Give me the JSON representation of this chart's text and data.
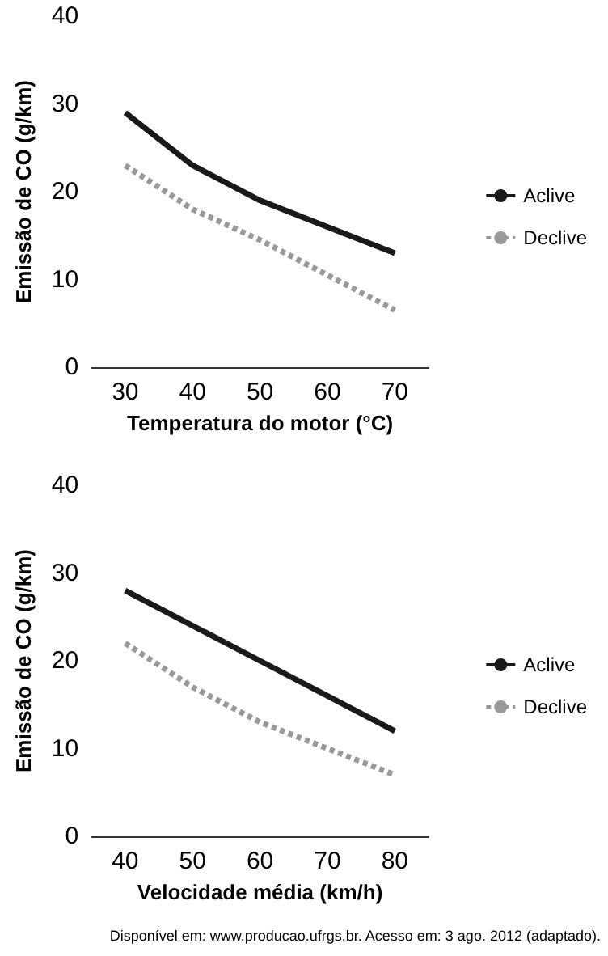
{
  "chart_data": [
    {
      "type": "line",
      "xlabel": "Temperatura do motor (°C)",
      "ylabel": "Emissão de CO (g/km)",
      "categories": [
        "30",
        "40",
        "50",
        "60",
        "70"
      ],
      "series": [
        {
          "name": "Aclive",
          "color": "#1a1a1a",
          "line_style": "solid",
          "values": [
            29,
            23,
            19,
            16,
            13
          ]
        },
        {
          "name": "Declive",
          "color": "#999999",
          "line_style": "dashed",
          "values": [
            23,
            18,
            14.5,
            10.5,
            6.5
          ]
        }
      ],
      "ylim": [
        0,
        40
      ],
      "yticks": [
        0,
        10,
        20,
        30,
        40
      ],
      "grid": false,
      "legend": "right",
      "marker": "none"
    },
    {
      "type": "line",
      "xlabel": "Velocidade média (km/h)",
      "ylabel": "Emissão de CO (g/km)",
      "categories": [
        "40",
        "50",
        "60",
        "70",
        "80"
      ],
      "series": [
        {
          "name": "Aclive",
          "color": "#1a1a1a",
          "line_style": "solid",
          "values": [
            28,
            24,
            20,
            16,
            12
          ]
        },
        {
          "name": "Declive",
          "color": "#999999",
          "line_style": "dashed",
          "values": [
            22,
            17,
            13,
            10,
            7
          ]
        }
      ],
      "ylim": [
        0,
        40
      ],
      "yticks": [
        0,
        10,
        20,
        30,
        40
      ],
      "grid": false,
      "legend": "right",
      "marker": "none",
      "annotations": [
        "Disponível em: www.producao.ufrgs.br. Acesso em: 3 ago. 2012 (adaptado)."
      ]
    }
  ]
}
